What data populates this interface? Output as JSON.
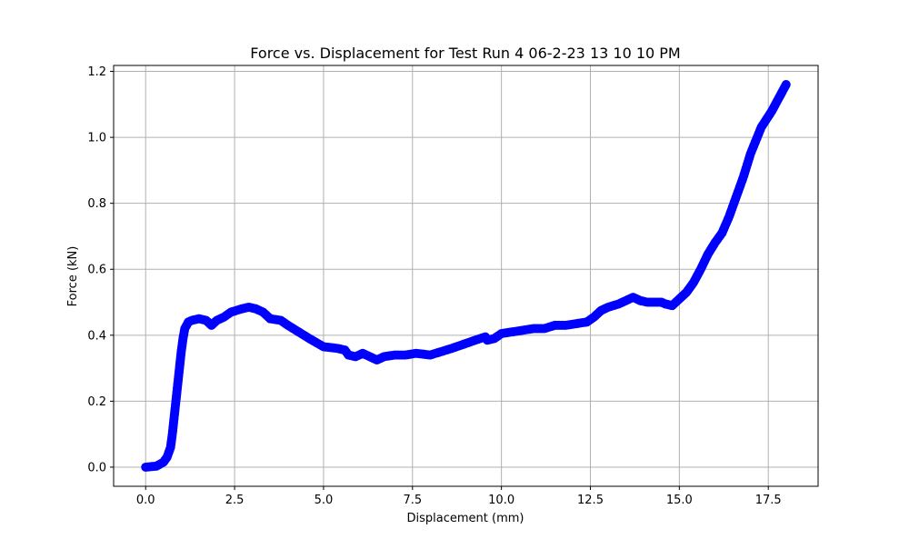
{
  "chart_data": {
    "type": "scatter",
    "title": "Force vs. Displacement for Test Run 4 06-2-23 13 10 10 PM",
    "xlabel": "Displacement (mm)",
    "ylabel": "Force (kN)",
    "xlim": [
      -0.9,
      18.9
    ],
    "ylim": [
      -0.058,
      1.218
    ],
    "grid": true,
    "x_ticks": [
      0.0,
      2.5,
      5.0,
      7.5,
      10.0,
      12.5,
      15.0,
      17.5
    ],
    "x_tick_labels": [
      "0.0",
      "2.5",
      "5.0",
      "7.5",
      "10.0",
      "12.5",
      "15.0",
      "17.5"
    ],
    "y_ticks": [
      0.0,
      0.2,
      0.4,
      0.6,
      0.8,
      1.0,
      1.2
    ],
    "y_tick_labels": [
      "0.0",
      "0.2",
      "0.4",
      "0.6",
      "0.8",
      "1.0",
      "1.2"
    ],
    "series": [
      {
        "color": "#0000ff",
        "x": [
          0.0,
          0.3,
          0.5,
          0.6,
          0.7,
          0.75,
          0.8,
          0.85,
          0.9,
          0.95,
          1.0,
          1.05,
          1.1,
          1.2,
          1.3,
          1.5,
          1.7,
          1.85,
          2.0,
          2.2,
          2.4,
          2.55,
          2.7,
          2.9,
          3.1,
          3.3,
          3.5,
          3.8,
          4.0,
          4.3,
          4.6,
          5.0,
          5.4,
          5.6,
          5.7,
          5.9,
          6.1,
          6.3,
          6.5,
          6.7,
          7.0,
          7.3,
          7.6,
          8.0,
          8.3,
          8.6,
          9.0,
          9.4,
          9.55,
          9.6,
          9.8,
          10.0,
          10.3,
          10.6,
          10.9,
          11.2,
          11.5,
          11.8,
          12.1,
          12.4,
          12.6,
          12.8,
          13.0,
          13.3,
          13.5,
          13.7,
          13.9,
          14.1,
          14.3,
          14.5,
          14.6,
          14.8,
          15.0,
          15.2,
          15.4,
          15.6,
          15.8,
          16.0,
          16.2,
          16.4,
          16.6,
          16.8,
          17.0,
          17.3,
          17.6,
          17.8,
          18.0
        ],
        "y": [
          0.0,
          0.003,
          0.015,
          0.03,
          0.06,
          0.1,
          0.15,
          0.2,
          0.25,
          0.3,
          0.35,
          0.39,
          0.42,
          0.44,
          0.445,
          0.45,
          0.445,
          0.43,
          0.445,
          0.455,
          0.47,
          0.475,
          0.48,
          0.485,
          0.48,
          0.47,
          0.45,
          0.445,
          0.43,
          0.41,
          0.39,
          0.365,
          0.36,
          0.355,
          0.34,
          0.335,
          0.345,
          0.335,
          0.325,
          0.335,
          0.34,
          0.34,
          0.345,
          0.34,
          0.35,
          0.36,
          0.375,
          0.39,
          0.395,
          0.385,
          0.39,
          0.405,
          0.41,
          0.415,
          0.42,
          0.42,
          0.43,
          0.43,
          0.435,
          0.44,
          0.455,
          0.475,
          0.485,
          0.495,
          0.505,
          0.515,
          0.505,
          0.5,
          0.5,
          0.5,
          0.495,
          0.49,
          0.51,
          0.53,
          0.56,
          0.6,
          0.645,
          0.68,
          0.71,
          0.76,
          0.82,
          0.88,
          0.95,
          1.03,
          1.08,
          1.12,
          1.16
        ]
      }
    ]
  }
}
